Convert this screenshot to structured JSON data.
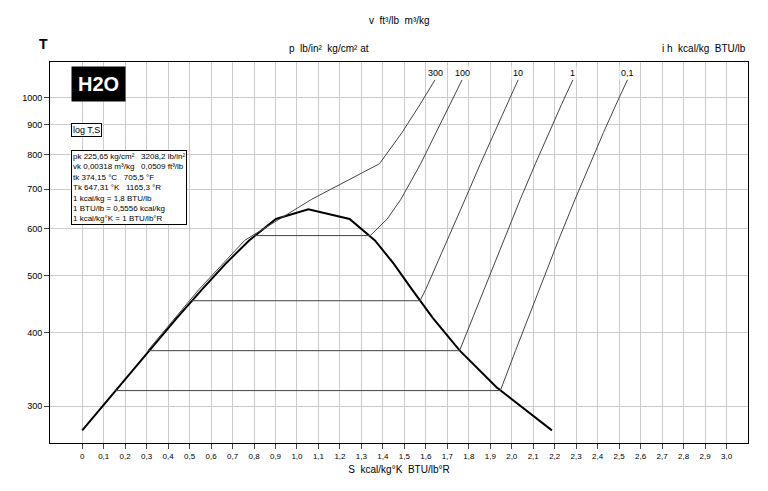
{
  "chart_data": {
    "type": "line",
    "title": "H2O",
    "subtitle": "log T,S",
    "x_label": "S  kcal/kg°K  BTU/lb°R",
    "y_label": "T",
    "v_label": "v  ft³/lb  m³/kg",
    "p_label": "p  lb/in²  kg/cm² at",
    "h_label": "i h  kcal/kg  BTU/lb",
    "constants": [
      "pk 225,65 kg/cm²   3208,2 lb/in²",
      "vk 0,00318 m³/kg   0,0509 ft³/lb",
      "tk 374,15 °C   705,5 °F",
      "Tk 647,31 °K   1165,3 °R",
      "1 kcal/kg = 1,8 BTU/lb",
      "1 BTU/lb = 0,5556 kcal/kg",
      "1 kcal/kg°K = 1 BTU/lb°R"
    ],
    "log": "y",
    "grid": true,
    "legend": false,
    "xlim": [
      -0.15,
      3.1
    ],
    "ylim": [
      260,
      1150
    ],
    "xticks": [
      {
        "value": 0,
        "label": "0"
      },
      {
        "value": 0.1,
        "label": "0,1"
      },
      {
        "value": 0.2,
        "label": "0,2"
      },
      {
        "value": 0.3,
        "label": "0,3"
      },
      {
        "value": 0.4,
        "label": "0,4"
      },
      {
        "value": 0.5,
        "label": "0,5"
      },
      {
        "value": 0.6,
        "label": "0,6"
      },
      {
        "value": 0.7,
        "label": "0,7"
      },
      {
        "value": 0.8,
        "label": "0,8"
      },
      {
        "value": 0.9,
        "label": "0,9"
      },
      {
        "value": 1.0,
        "label": "1,0"
      },
      {
        "value": 1.1,
        "label": "1,1"
      },
      {
        "value": 1.2,
        "label": "1,2"
      },
      {
        "value": 1.3,
        "label": "1,3"
      },
      {
        "value": 1.4,
        "label": "1,4"
      },
      {
        "value": 1.5,
        "label": "1,5"
      },
      {
        "value": 1.6,
        "label": "1,6"
      },
      {
        "value": 1.7,
        "label": "1,7"
      },
      {
        "value": 1.8,
        "label": "1,8"
      },
      {
        "value": 1.9,
        "label": "1,9"
      },
      {
        "value": 2.0,
        "label": "2,0"
      },
      {
        "value": 2.1,
        "label": "2,1"
      },
      {
        "value": 2.2,
        "label": "2,2"
      },
      {
        "value": 2.3,
        "label": "2,3"
      },
      {
        "value": 2.4,
        "label": "2,4"
      },
      {
        "value": 2.5,
        "label": "2,5"
      },
      {
        "value": 2.6,
        "label": "2,6"
      },
      {
        "value": 2.7,
        "label": "2,7"
      },
      {
        "value": 2.8,
        "label": "2,8"
      },
      {
        "value": 2.9,
        "label": "2,9"
      },
      {
        "value": 3.0,
        "label": "3,0"
      }
    ],
    "yticks": [
      300,
      400,
      500,
      600,
      700,
      800,
      900,
      1000
    ],
    "series": [
      {
        "color": "#000000",
        "line_style": "solid",
        "x": [
          0,
          0.168,
          0.312,
          0.44,
          0.557,
          0.667,
          0.777,
          0.902,
          1.053,
          1.245,
          1.363,
          1.451,
          1.536,
          1.633,
          1.757,
          1.929,
          2.187
        ],
        "values": [
          273.16,
          323.15,
          373.15,
          423.15,
          473.15,
          523.15,
          573.15,
          623.15,
          647.3,
          623.15,
          573.15,
          523.15,
          473.15,
          423.15,
          373.15,
          323.15,
          273.16
        ]
      },
      {
        "name": "0,1",
        "color": "#444444",
        "line_style": "solid",
        "x": [
          0.155,
          1.947,
          2.018,
          2.127,
          2.217,
          2.295,
          2.364,
          2.427,
          2.485,
          2.539
        ],
        "values": [
          319.0,
          319.0,
          373.15,
          473.15,
          573.15,
          673.15,
          773.15,
          873.15,
          973.15,
          1073.15
        ]
      },
      {
        "name": "1",
        "color": "#444444",
        "line_style": "solid",
        "x": [
          0.311,
          1.757,
          1.871,
          1.962,
          2.04,
          2.11,
          2.173,
          2.231,
          2.285
        ],
        "values": [
          372.8,
          372.8,
          473.15,
          573.15,
          673.15,
          773.15,
          873.15,
          973.15,
          1073.15
        ]
      },
      {
        "name": "10",
        "color": "#444444",
        "line_style": "solid",
        "x": [
          0.511,
          1.573,
          1.599,
          1.701,
          1.783,
          1.854,
          1.918,
          1.976,
          2.03
        ],
        "values": [
          453.0,
          453.0,
          473.15,
          573.15,
          673.15,
          773.15,
          873.15,
          973.15,
          1073.15
        ]
      },
      {
        "name": "100",
        "color": "#444444",
        "line_style": "solid",
        "x": [
          0.803,
          1.341,
          1.42,
          1.484,
          1.576,
          1.649,
          1.713,
          1.769
        ],
        "values": [
          584.1,
          584.1,
          623.15,
          673.15,
          773.15,
          873.15,
          973.15,
          1073.15
        ]
      },
      {
        "name": "300",
        "color": "#444444",
        "line_style": "solid",
        "x": [
          0.306,
          0.543,
          0.756,
          1.069,
          1.384,
          1.489,
          1.572,
          1.643
        ],
        "values": [
          373.15,
          473.15,
          573.15,
          673.15,
          773.15,
          873.15,
          973.15,
          1073.15
        ]
      }
    ]
  }
}
